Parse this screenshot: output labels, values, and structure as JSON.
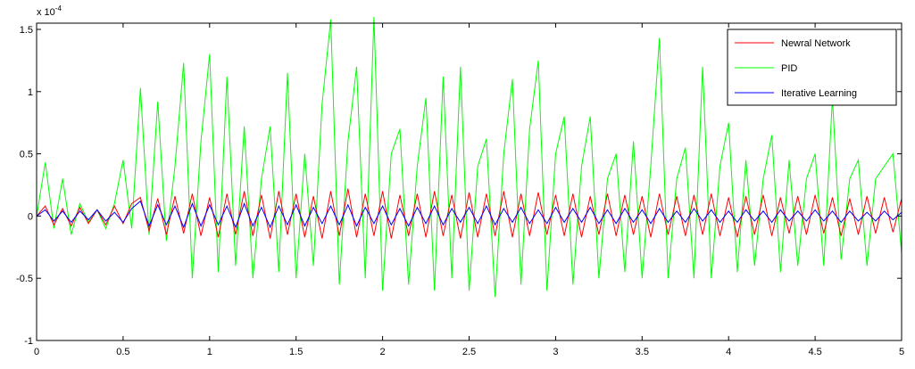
{
  "chart_data": {
    "type": "line",
    "y_exponent": {
      "base": "x 10",
      "exponent": "-4"
    },
    "x": [
      0,
      0.05,
      0.1,
      0.15,
      0.2,
      0.25,
      0.3,
      0.35,
      0.4,
      0.45,
      0.5,
      0.55,
      0.6,
      0.65,
      0.7,
      0.75,
      0.8,
      0.85,
      0.9,
      0.95,
      1,
      1.05,
      1.1,
      1.15,
      1.2,
      1.25,
      1.3,
      1.35,
      1.4,
      1.45,
      1.5,
      1.55,
      1.6,
      1.65,
      1.7,
      1.75,
      1.8,
      1.85,
      1.9,
      1.95,
      2,
      2.05,
      2.1,
      2.15,
      2.2,
      2.25,
      2.3,
      2.35,
      2.4,
      2.45,
      2.5,
      2.55,
      2.6,
      2.65,
      2.7,
      2.75,
      2.8,
      2.85,
      2.9,
      2.95,
      3,
      3.05,
      3.1,
      3.15,
      3.2,
      3.25,
      3.3,
      3.35,
      3.4,
      3.45,
      3.5,
      3.55,
      3.6,
      3.65,
      3.7,
      3.75,
      3.8,
      3.85,
      3.9,
      3.95,
      4,
      4.05,
      4.1,
      4.15,
      4.2,
      4.25,
      4.3,
      4.35,
      4.4,
      4.45,
      4.5,
      4.55,
      4.6,
      4.65,
      4.7,
      4.75,
      4.8,
      4.85,
      4.9,
      4.95,
      5
    ],
    "series": [
      {
        "name": "Newral Network",
        "color": "#ff0000",
        "values": [
          0,
          0.08,
          -0.07,
          0.06,
          -0.08,
          0.07,
          -0.06,
          0.05,
          -0.07,
          0.08,
          -0.06,
          0.1,
          0.15,
          -0.12,
          0.14,
          -0.15,
          0.16,
          -0.14,
          0.18,
          -0.16,
          0.15,
          -0.17,
          0.18,
          -0.15,
          0.2,
          -0.16,
          0.17,
          -0.18,
          0.2,
          -0.15,
          0.18,
          -0.17,
          0.16,
          -0.18,
          0.2,
          -0.16,
          0.22,
          -0.17,
          0.18,
          -0.16,
          0.2,
          -0.18,
          0.17,
          -0.16,
          0.18,
          -0.17,
          0.2,
          -0.16,
          0.17,
          -0.18,
          0.19,
          -0.17,
          0.18,
          -0.16,
          0.2,
          -0.17,
          0.18,
          -0.16,
          0.19,
          -0.15,
          0.17,
          -0.16,
          0.18,
          -0.17,
          0.16,
          -0.15,
          0.18,
          -0.16,
          0.17,
          -0.15,
          0.16,
          -0.17,
          0.18,
          -0.15,
          0.16,
          -0.16,
          0.17,
          -0.15,
          0.18,
          -0.16,
          0.15,
          -0.17,
          0.16,
          -0.15,
          0.17,
          -0.16,
          0.15,
          -0.14,
          0.16,
          -0.15,
          0.17,
          -0.14,
          0.15,
          -0.16,
          0.14,
          -0.15,
          0.16,
          -0.14,
          0.15,
          -0.13,
          0.14
        ]
      },
      {
        "name": "PID",
        "color": "#00ff00",
        "values": [
          0,
          0.43,
          -0.1,
          0.3,
          -0.15,
          0.1,
          -0.05,
          0.05,
          -0.1,
          0.1,
          0.45,
          -0.1,
          1.03,
          -0.15,
          0.92,
          -0.2,
          0.4,
          1.23,
          -0.5,
          0.6,
          1.3,
          -0.45,
          1.12,
          -0.4,
          0.72,
          -0.5,
          0.3,
          0.72,
          -0.45,
          1.15,
          -0.5,
          0.5,
          -0.4,
          0.9,
          1.58,
          -0.55,
          0.6,
          1.2,
          -0.5,
          1.6,
          -0.6,
          0.5,
          0.7,
          -0.55,
          0.4,
          0.95,
          -0.6,
          1.12,
          -0.5,
          1.2,
          -0.6,
          0.4,
          0.62,
          -0.65,
          0.5,
          1.1,
          -0.55,
          0.7,
          1.25,
          -0.6,
          0.5,
          0.8,
          -0.55,
          0.4,
          0.8,
          -0.5,
          0.3,
          0.5,
          -0.45,
          0.6,
          -0.5,
          0.4,
          1.43,
          -0.5,
          0.3,
          0.55,
          -0.5,
          1.2,
          -0.5,
          0.4,
          0.75,
          -0.45,
          0.45,
          -0.4,
          0.3,
          0.65,
          -0.45,
          0.45,
          -0.4,
          0.3,
          0.5,
          -0.4,
          0.95,
          -0.35,
          0.3,
          0.45,
          -0.4,
          0.3,
          0.4,
          0.5,
          -0.3
        ]
      },
      {
        "name": "Iterative Learning",
        "color": "#0000ff",
        "values": [
          0,
          0.05,
          -0.04,
          0.04,
          -0.05,
          0.04,
          -0.03,
          0.05,
          -0.04,
          0.03,
          -0.05,
          0.06,
          0.12,
          -0.08,
          0.09,
          -0.07,
          0.08,
          -0.09,
          0.1,
          -0.08,
          0.09,
          -0.07,
          0.08,
          -0.09,
          0.1,
          -0.08,
          0.07,
          -0.09,
          0.08,
          -0.07,
          0.09,
          -0.08,
          0.07,
          -0.06,
          0.08,
          -0.07,
          0.09,
          -0.08,
          0.07,
          -0.06,
          0.08,
          -0.07,
          0.06,
          -0.08,
          0.07,
          -0.06,
          0.08,
          -0.07,
          0.06,
          -0.05,
          0.07,
          -0.06,
          0.08,
          -0.07,
          0.06,
          -0.05,
          0.07,
          -0.06,
          0.05,
          -0.06,
          0.07,
          -0.05,
          0.06,
          -0.05,
          0.07,
          -0.06,
          0.05,
          -0.06,
          0.06,
          -0.05,
          0.05,
          -0.06,
          0.06,
          -0.05,
          0.04,
          -0.05,
          0.06,
          -0.04,
          0.05,
          -0.05,
          0.04,
          -0.05,
          0.05,
          -0.04,
          0.04,
          -0.05,
          0.05,
          -0.04,
          0.04,
          -0.04,
          0.05,
          -0.04,
          0.04,
          -0.05,
          0.04,
          -0.04,
          0.03,
          -0.04,
          0.04,
          -0.03,
          0.03
        ]
      }
    ],
    "xlim": [
      0,
      5
    ],
    "xticks": [
      0,
      0.5,
      1,
      1.5,
      2,
      2.5,
      3,
      3.5,
      4,
      4.5,
      5
    ],
    "ylim": [
      -1,
      1.55
    ],
    "yticks": [
      -1,
      -0.5,
      0,
      0.5,
      1,
      1.5
    ],
    "grid": false,
    "legend": "upper right"
  }
}
